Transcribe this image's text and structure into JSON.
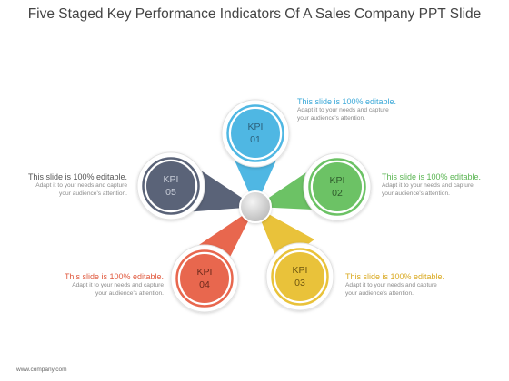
{
  "title": "Five Staged Key Performance Indicators Of A Sales Company PPT Slide",
  "footer": "www.company.com",
  "kpis": [
    {
      "line1": "KPI",
      "line2": "01",
      "color": "#4fb7e3"
    },
    {
      "line1": "KPI",
      "line2": "02",
      "color": "#6cc265"
    },
    {
      "line1": "KPI",
      "line2": "03",
      "color": "#e9c23a"
    },
    {
      "line1": "KPI",
      "line2": "04",
      "color": "#e8674e"
    },
    {
      "line1": "KPI",
      "line2": "05",
      "color": "#5a6378"
    }
  ],
  "callouts": [
    {
      "head": "This slide is 100% editable.",
      "body1": "Adapt it to your needs and capture",
      "body2": "your audience's attention.",
      "color": "#3aa8d8"
    },
    {
      "head": "This slide is 100% editable.",
      "body1": "Adapt it to your needs and capture",
      "body2": "your audience's attention.",
      "color": "#5ab552"
    },
    {
      "head": "This slide is 100% editable.",
      "body1": "Adapt it to your needs and capture",
      "body2": "your audience's attention.",
      "color": "#d9a920"
    },
    {
      "head": "This slide is 100% editable.",
      "body1": "Adapt it to your needs and capture",
      "body2": "your audience's attention.",
      "color": "#e05a3f"
    },
    {
      "head": "This slide is 100% editable.",
      "body1": "Adapt it to your needs and capture",
      "body2": "your audience's attention.",
      "color": "#555555"
    }
  ]
}
